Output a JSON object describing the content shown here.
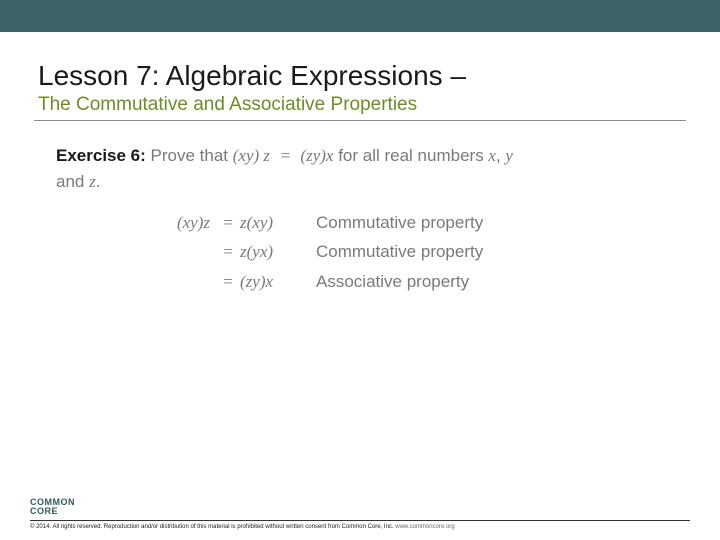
{
  "colors": {
    "topBar": "#3f6468",
    "title": "#1a1a1a",
    "subtitle": "#6f8b28",
    "bodyText": "#7a7a7a",
    "labelText": "#1a1a1a",
    "underline": "#8a8a8a",
    "logo": "#2f5a5e",
    "background": "#ffffff"
  },
  "header": {
    "title": "Lesson 7: Algebraic Expressions –",
    "subtitle": "The Commutative and Associative Properties"
  },
  "exercise": {
    "label": "Exercise 6:",
    "problemPrefix": "Prove that ",
    "problemExprLHS": "(xy) z",
    "problemEq": "=",
    "problemExprRHS": "(zy)x",
    "problemMid": " for all real numbers ",
    "varsX": "x",
    "comma": ", ",
    "varsY": "y",
    "andText": "and ",
    "varsZ": "z",
    "period": "."
  },
  "proof": {
    "rows": [
      {
        "left": "(xy)z",
        "eq": "=",
        "mid": "z(xy)",
        "reason": "Commutative property"
      },
      {
        "left": "",
        "eq": "=",
        "mid": "z(yx)",
        "reason": "Commutative property"
      },
      {
        "left": "",
        "eq": "=",
        "mid": "(zy)x",
        "reason": "Associative property"
      }
    ]
  },
  "footer": {
    "logoLine1": "COMMON",
    "logoLine2": "CORE",
    "copyright": "© 2014. All rights reserved. Reproduction and/or distribution of this material is prohibited without written consent from Common Core, Inc.",
    "url": "www.commoncore.org"
  },
  "typography": {
    "titleFontSize": 28,
    "subtitleFontSize": 19,
    "bodyFontSize": 17,
    "footerFontSize": 6
  }
}
